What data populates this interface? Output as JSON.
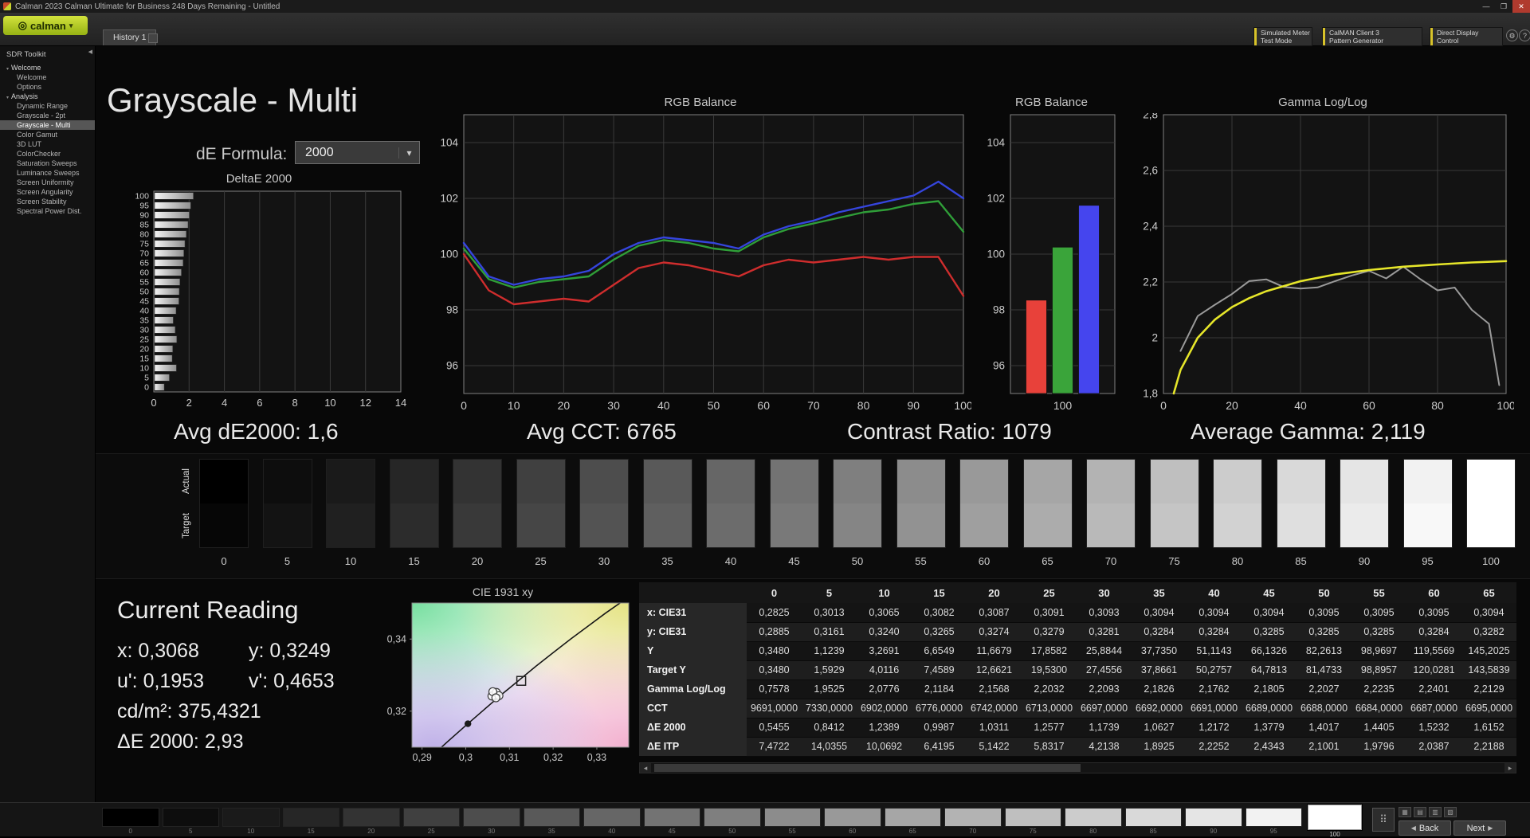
{
  "window": {
    "title": "Calman 2023 Calman Ultimate for Business 248 Days Remaining  - Untitled",
    "minimize": "—",
    "maximize": "❐",
    "close": "✕"
  },
  "toolbar": {
    "logo_text": "calman",
    "logo_icon": "◎",
    "caret_icon": "▾",
    "history_tab": "History 1",
    "buttons": [
      {
        "line1": "Simulated Meter",
        "line2": "Test Mode"
      },
      {
        "line1": "CalMAN Client 3",
        "line2": "Pattern Generator"
      },
      {
        "line1": "Direct Display",
        "line2": "Control"
      }
    ],
    "gear_icon": "⚙",
    "help_icon": "?"
  },
  "sidebar": {
    "panel_title": "SDR Toolkit",
    "collapse_icon": "◀",
    "caret": "▾",
    "sections": [
      {
        "label": "Welcome",
        "items": [
          {
            "label": "Welcome"
          },
          {
            "label": "Options"
          }
        ]
      },
      {
        "label": "Analysis",
        "items": [
          {
            "label": "Dynamic Range"
          },
          {
            "label": "Grayscale - 2pt"
          },
          {
            "label": "Grayscale - Multi",
            "selected": true
          },
          {
            "label": "Color Gamut"
          },
          {
            "label": "3D LUT"
          },
          {
            "label": "ColorChecker"
          },
          {
            "label": "Saturation Sweeps"
          },
          {
            "label": "Luminance Sweeps"
          },
          {
            "label": "Screen Uniformity"
          },
          {
            "label": "Screen Angularity"
          },
          {
            "label": "Screen Stability"
          },
          {
            "label": "Spectral Power Dist."
          }
        ]
      }
    ]
  },
  "page": {
    "title": "Grayscale - Multi",
    "de_formula_label": "dE Formula:",
    "de_formula_value": "2000"
  },
  "stats": [
    "Avg dE2000: 1,6",
    "Avg CCT: 6765",
    "Contrast Ratio: 1079",
    "Average Gamma: 2,119"
  ],
  "grayscale_strip": {
    "row_labels": [
      "Actual",
      "Target"
    ],
    "levels": [
      0,
      5,
      10,
      15,
      20,
      25,
      30,
      35,
      40,
      45,
      50,
      55,
      60,
      65,
      70,
      75,
      80,
      85,
      90,
      95,
      100
    ]
  },
  "current_reading": {
    "title": "Current Reading",
    "x": "x: 0,3068",
    "y": "y: 0,3249",
    "u": "u': 0,1953",
    "v": "v': 0,4653",
    "cd": "cd/m²: 375,4321",
    "de": "ΔE 2000: 2,93"
  },
  "table": {
    "columns": [
      "0",
      "5",
      "10",
      "15",
      "20",
      "25",
      "30",
      "35",
      "40",
      "45",
      "50",
      "55",
      "60",
      "65"
    ],
    "rows": [
      {
        "label": "x: CIE31",
        "values": [
          "0,2825",
          "0,3013",
          "0,3065",
          "0,3082",
          "0,3087",
          "0,3091",
          "0,3093",
          "0,3094",
          "0,3094",
          "0,3094",
          "0,3095",
          "0,3095",
          "0,3095",
          "0,3094"
        ]
      },
      {
        "label": "y: CIE31",
        "values": [
          "0,2885",
          "0,3161",
          "0,3240",
          "0,3265",
          "0,3274",
          "0,3279",
          "0,3281",
          "0,3284",
          "0,3284",
          "0,3285",
          "0,3285",
          "0,3285",
          "0,3284",
          "0,3282"
        ]
      },
      {
        "label": "Y",
        "values": [
          "0,3480",
          "1,1239",
          "3,2691",
          "6,6549",
          "11,6679",
          "17,8582",
          "25,8844",
          "37,7350",
          "51,1143",
          "66,1326",
          "82,2613",
          "98,9697",
          "119,5569",
          "145,2025"
        ]
      },
      {
        "label": "Target Y",
        "values": [
          "0,3480",
          "1,5929",
          "4,0116",
          "7,4589",
          "12,6621",
          "19,5300",
          "27,4556",
          "37,8661",
          "50,2757",
          "64,7813",
          "81,4733",
          "98,8957",
          "120,0281",
          "143,5839"
        ]
      },
      {
        "label": "Gamma Log/Log",
        "values": [
          "0,7578",
          "1,9525",
          "2,0776",
          "2,1184",
          "2,1568",
          "2,2032",
          "2,2093",
          "2,1826",
          "2,1762",
          "2,1805",
          "2,2027",
          "2,2235",
          "2,2401",
          "2,2129"
        ]
      },
      {
        "label": "CCT",
        "values": [
          "9691,0000",
          "7330,0000",
          "6902,0000",
          "6776,0000",
          "6742,0000",
          "6713,0000",
          "6697,0000",
          "6692,0000",
          "6691,0000",
          "6689,0000",
          "6688,0000",
          "6684,0000",
          "6687,0000",
          "6695,0000"
        ]
      },
      {
        "label": "ΔE 2000",
        "values": [
          "0,5455",
          "0,8412",
          "1,2389",
          "0,9987",
          "1,0311",
          "1,2577",
          "1,1739",
          "1,0627",
          "1,2172",
          "1,3779",
          "1,4017",
          "1,4405",
          "1,5232",
          "1,6152"
        ]
      },
      {
        "label": "ΔE ITP",
        "values": [
          "7,4722",
          "14,0355",
          "10,0692",
          "6,4195",
          "5,1422",
          "5,8317",
          "4,2138",
          "1,8925",
          "2,2252",
          "2,4343",
          "2,1001",
          "1,9796",
          "2,0387",
          "2,2188"
        ]
      }
    ],
    "scroll_left_icon": "◂",
    "scroll_right_icon": "▸"
  },
  "bottom_bar": {
    "levels": [
      0,
      5,
      10,
      15,
      20,
      25,
      30,
      35,
      40,
      45,
      50,
      55,
      60,
      65,
      70,
      75,
      80,
      85,
      90,
      95
    ],
    "selected_level": "100",
    "pattern_icon": "⠿",
    "view_icons": [
      "▦",
      "▤",
      "▥",
      "▧"
    ],
    "back": "Back",
    "next": "Next",
    "back_icon": "◀",
    "next_icon": "▶"
  },
  "chart_data": [
    {
      "type": "bar",
      "orientation": "horizontal",
      "title": "DeltaE 2000",
      "categories": [
        100,
        95,
        90,
        85,
        80,
        75,
        70,
        65,
        60,
        55,
        50,
        45,
        40,
        35,
        30,
        25,
        20,
        15,
        10,
        5,
        0
      ],
      "values": [
        2.2,
        2.05,
        1.97,
        1.9,
        1.8,
        1.72,
        1.66,
        1.62,
        1.52,
        1.44,
        1.4,
        1.38,
        1.22,
        1.06,
        1.17,
        1.26,
        1.03,
        1.0,
        1.24,
        0.84,
        0.55
      ],
      "xlim": [
        0,
        14
      ],
      "xticks": [
        0,
        2,
        4,
        6,
        8,
        10,
        12,
        14
      ]
    },
    {
      "type": "line",
      "title": "RGB Balance",
      "x": [
        0,
        5,
        10,
        15,
        20,
        25,
        30,
        35,
        40,
        45,
        50,
        55,
        60,
        65,
        70,
        75,
        80,
        85,
        90,
        95,
        100
      ],
      "xlim": [
        0,
        100
      ],
      "ylim": [
        95,
        105
      ],
      "xticks": [
        0,
        10,
        20,
        30,
        40,
        50,
        60,
        70,
        80,
        90,
        100
      ],
      "yticks": [
        96,
        98,
        100,
        102,
        104
      ],
      "series": [
        {
          "name": "Red",
          "color": "#cf2d2d",
          "values": [
            100.0,
            98.7,
            98.2,
            98.3,
            98.4,
            98.3,
            98.9,
            99.5,
            99.7,
            99.6,
            99.4,
            99.2,
            99.6,
            99.8,
            99.7,
            99.8,
            99.9,
            99.8,
            99.9,
            99.9,
            98.5
          ]
        },
        {
          "name": "Green",
          "color": "#2f9e38",
          "values": [
            100.2,
            99.1,
            98.8,
            99.0,
            99.1,
            99.2,
            99.8,
            100.3,
            100.5,
            100.4,
            100.2,
            100.1,
            100.6,
            100.9,
            101.1,
            101.3,
            101.5,
            101.6,
            101.8,
            101.9,
            100.8
          ]
        },
        {
          "name": "Blue",
          "color": "#3545dd",
          "values": [
            100.4,
            99.2,
            98.9,
            99.1,
            99.2,
            99.4,
            100.0,
            100.4,
            100.6,
            100.5,
            100.4,
            100.2,
            100.7,
            101.0,
            101.2,
            101.5,
            101.7,
            101.9,
            102.1,
            102.6,
            102.0
          ]
        }
      ]
    },
    {
      "type": "bar",
      "title": "RGB Balance",
      "categories": [
        "R",
        "G",
        "B"
      ],
      "values": [
        98.35,
        100.25,
        101.75
      ],
      "colors": [
        "#e8413a",
        "#3aa43a",
        "#4545ee"
      ],
      "ylim": [
        95,
        105
      ],
      "yticks": [
        96,
        98,
        100,
        102,
        104
      ],
      "x_label": "100"
    },
    {
      "type": "line",
      "title": "Gamma Log/Log",
      "xlim": [
        0,
        100
      ],
      "ylim": [
        1.8,
        2.8
      ],
      "xticks": [
        0,
        20,
        40,
        60,
        80,
        100
      ],
      "yticks": [
        1.8,
        2.0,
        2.2,
        2.4,
        2.6,
        2.8
      ],
      "ytick_labels": [
        "1,8",
        "2",
        "2,2",
        "2,4",
        "2,6",
        "2,8"
      ],
      "series": [
        {
          "name": "Measured",
          "color": "#9a9a9a",
          "width": 2,
          "x": [
            5,
            10,
            15,
            20,
            25,
            30,
            35,
            40,
            45,
            50,
            55,
            60,
            65,
            70,
            75,
            80,
            85,
            90,
            95,
            98
          ],
          "values": [
            1.9525,
            2.0776,
            2.1184,
            2.1568,
            2.2032,
            2.2093,
            2.1826,
            2.1762,
            2.1805,
            2.2027,
            2.2235,
            2.2401,
            2.2129,
            2.255,
            2.21,
            2.17,
            2.18,
            2.1,
            2.05,
            1.83
          ]
        },
        {
          "name": "Target",
          "color": "#e6e62a",
          "width": 2.6,
          "x": [
            3,
            5,
            10,
            15,
            20,
            25,
            30,
            40,
            50,
            60,
            70,
            80,
            90,
            100
          ],
          "values": [
            1.8,
            1.885,
            2.0,
            2.065,
            2.11,
            2.142,
            2.167,
            2.203,
            2.227,
            2.243,
            2.255,
            2.263,
            2.27,
            2.275
          ]
        }
      ]
    },
    {
      "type": "scatter",
      "title": "CIE 1931 xy",
      "xlim": [
        0.2877,
        0.3373
      ],
      "ylim": [
        0.31,
        0.35
      ],
      "xticks": [
        0.29,
        0.3,
        0.31,
        0.32,
        0.33
      ],
      "xtick_labels": [
        "0,29",
        "0,3",
        "0,31",
        "0,32",
        "0,33"
      ],
      "yticks": [
        0.32,
        0.34
      ],
      "ytick_labels": [
        "0,32",
        "0,34"
      ],
      "locus": [
        [
          0.292,
          0.3073
        ],
        [
          0.296,
          0.3117
        ],
        [
          0.3,
          0.316
        ],
        [
          0.304,
          0.3202
        ],
        [
          0.308,
          0.3244
        ],
        [
          0.312,
          0.3284
        ],
        [
          0.316,
          0.3324
        ],
        [
          0.32,
          0.3362
        ],
        [
          0.324,
          0.34
        ],
        [
          0.328,
          0.3436
        ],
        [
          0.332,
          0.3472
        ],
        [
          0.336,
          0.3506
        ]
      ],
      "points": {
        "dot": [
          0.3005,
          0.3165
        ],
        "cluster": [
          [
            0.306,
            0.3242
          ],
          [
            0.307,
            0.3252
          ],
          [
            0.3076,
            0.3243
          ],
          [
            0.3062,
            0.3254
          ],
          [
            0.3069,
            0.3237
          ]
        ],
        "target": [
          0.3127,
          0.3284
        ]
      }
    }
  ]
}
